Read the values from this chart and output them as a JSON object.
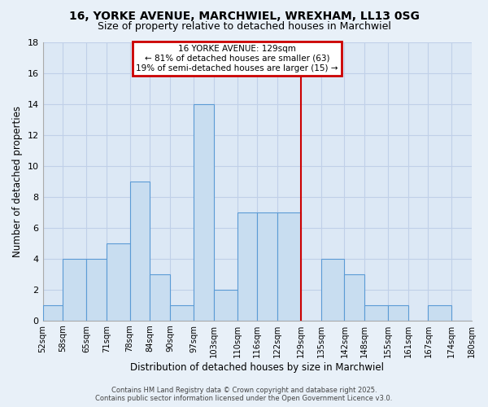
{
  "title": "16, YORKE AVENUE, MARCHWIEL, WREXHAM, LL13 0SG",
  "subtitle": "Size of property relative to detached houses in Marchwiel",
  "xlabel": "Distribution of detached houses by size in Marchwiel",
  "ylabel": "Number of detached properties",
  "bin_edges": [
    52,
    58,
    65,
    71,
    78,
    84,
    90,
    97,
    103,
    110,
    116,
    122,
    129,
    135,
    142,
    148,
    155,
    161,
    167,
    174,
    180
  ],
  "bar_heights": [
    1,
    4,
    4,
    5,
    9,
    3,
    1,
    14,
    2,
    7,
    7,
    7,
    0,
    4,
    3,
    1,
    1,
    0,
    1,
    0
  ],
  "bar_color": "#c8ddf0",
  "bar_edge_color": "#5b9bd5",
  "vline_x": 129,
  "vline_color": "#cc0000",
  "annotation_title": "16 YORKE AVENUE: 129sqm",
  "annotation_line1": "← 81% of detached houses are smaller (63)",
  "annotation_line2": "19% of semi-detached houses are larger (15) →",
  "annotation_box_color": "#cc0000",
  "ylim": [
    0,
    18
  ],
  "yticks": [
    0,
    2,
    4,
    6,
    8,
    10,
    12,
    14,
    16,
    18
  ],
  "background_color": "#e8f0f8",
  "plot_bg_color": "#dce8f5",
  "grid_color": "#c0d0e8",
  "footer1": "Contains HM Land Registry data © Crown copyright and database right 2025.",
  "footer2": "Contains public sector information licensed under the Open Government Licence v3.0.",
  "tick_labels": [
    "52sqm",
    "58sqm",
    "65sqm",
    "71sqm",
    "78sqm",
    "84sqm",
    "90sqm",
    "97sqm",
    "103sqm",
    "110sqm",
    "116sqm",
    "122sqm",
    "129sqm",
    "135sqm",
    "142sqm",
    "148sqm",
    "155sqm",
    "161sqm",
    "167sqm",
    "174sqm",
    "180sqm"
  ]
}
